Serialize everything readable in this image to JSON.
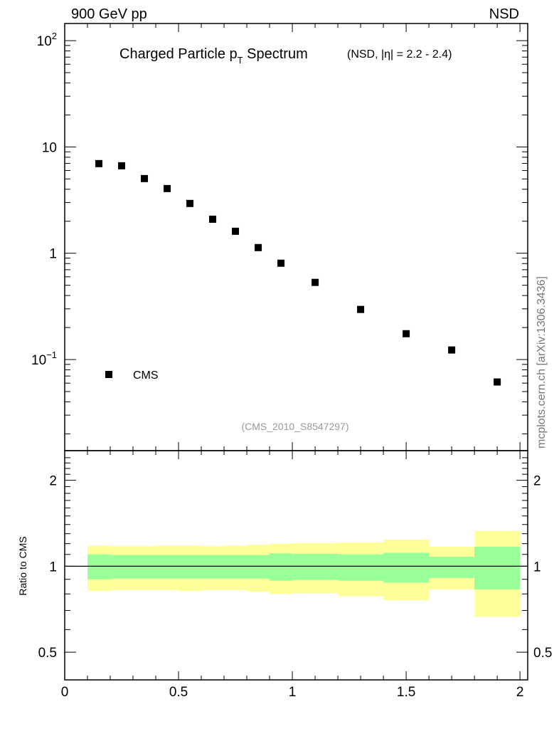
{
  "header": {
    "left": "900 GeV pp",
    "right": "NSD",
    "side": "mcplots.cern.ch [arXiv:1306.3436]"
  },
  "chart_data": [
    {
      "type": "scatter",
      "title": "Charged Particle p",
      "title_sub": "T",
      "title_tail": " Spectrum",
      "title_extra": "(NSD, |η| = 2.2 - 2.4)",
      "xlim": [
        0,
        2.034
      ],
      "ylim": [
        0.0139,
        145
      ],
      "yscale": "log",
      "ytick_labels": [
        {
          "v": 100,
          "base": "10",
          "exp": "2"
        },
        {
          "v": 10,
          "base": "10",
          "exp": ""
        },
        {
          "v": 1,
          "base": "1",
          "exp": ""
        },
        {
          "v": 0.1,
          "base": "10",
          "exp": "−1"
        }
      ],
      "legend": {
        "label": "CMS",
        "placement": "bottom-left"
      },
      "watermark": "(CMS_2010_S8547297)",
      "series": [
        {
          "name": "CMS",
          "x": [
            0.15,
            0.25,
            0.35,
            0.45,
            0.55,
            0.65,
            0.75,
            0.85,
            0.95,
            1.1,
            1.3,
            1.5,
            1.7,
            1.9
          ],
          "y": [
            6.97,
            6.65,
            5.04,
            4.06,
            2.94,
            2.09,
            1.61,
            1.13,
            0.806,
            0.532,
            0.296,
            0.175,
            0.123,
            0.0615
          ]
        }
      ]
    },
    {
      "type": "area",
      "ylabel": "Ratio to CMS",
      "yscale": "log",
      "ylim": [
        0.4,
        2.54
      ],
      "xlim": [
        0,
        2.034
      ],
      "ytick_labels": [
        {
          "v": 2,
          "label": "2"
        },
        {
          "v": 1,
          "label": "1"
        },
        {
          "v": 0.5,
          "label": "0.5"
        }
      ],
      "xtick_labels": [
        {
          "v": 0,
          "label": "0"
        },
        {
          "v": 0.5,
          "label": "0.5"
        },
        {
          "v": 1,
          "label": "1"
        },
        {
          "v": 1.5,
          "label": "1.5"
        },
        {
          "v": 2,
          "label": "2"
        }
      ],
      "bin_edges": [
        0.1,
        0.2,
        0.3,
        0.4,
        0.5,
        0.6,
        0.7,
        0.8,
        0.9,
        1.0,
        1.2,
        1.4,
        1.6,
        1.8,
        2.0
      ],
      "stat_band": {
        "color": "#99ff99",
        "lo": [
          0.9,
          0.905,
          0.905,
          0.905,
          0.905,
          0.905,
          0.905,
          0.905,
          0.89,
          0.895,
          0.89,
          0.876,
          0.91,
          0.83
        ],
        "hi": [
          1.1,
          1.095,
          1.095,
          1.095,
          1.095,
          1.095,
          1.095,
          1.095,
          1.11,
          1.105,
          1.1,
          1.115,
          1.08,
          1.17
        ]
      },
      "total_band": {
        "color": "#ffff99",
        "lo": [
          0.82,
          0.825,
          0.825,
          0.825,
          0.82,
          0.825,
          0.825,
          0.815,
          0.8,
          0.805,
          0.785,
          0.76,
          0.83,
          0.665
        ],
        "hi": [
          1.18,
          1.175,
          1.175,
          1.18,
          1.18,
          1.175,
          1.18,
          1.19,
          1.2,
          1.205,
          1.21,
          1.24,
          1.17,
          1.33
        ]
      }
    }
  ]
}
